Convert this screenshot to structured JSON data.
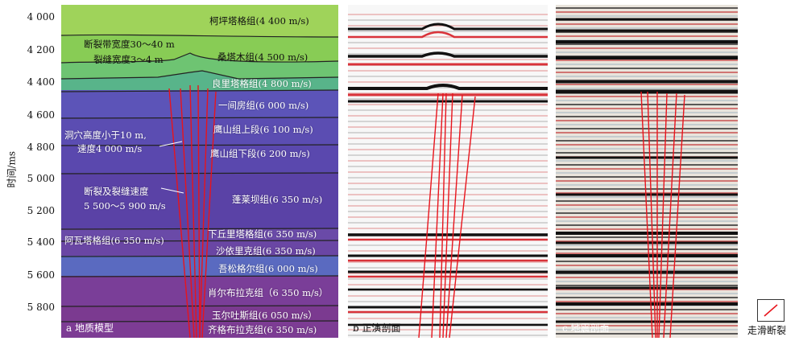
{
  "y_axis": {
    "label": "时间/ms",
    "ticks": [
      "4 000",
      "4 200",
      "4 400",
      "4 600",
      "4 800",
      "5 000",
      "5 200",
      "5 400",
      "5 600",
      "5 800"
    ]
  },
  "panel_a": {
    "label": "a 地质模型",
    "layers": [
      "柯坪塔格组(4 400 m/s)",
      "桑塔木组(4 500 m/s)",
      "良里塔格组(4 800 m/s)",
      "一间房组(6 000 m/s)",
      "鹰山组上段(6 100 m/s)",
      "鹰山组下段(6 200 m/s)",
      "蓬莱坝组(6 350 m/s)",
      "阿瓦塔格组(6 350 m/s)",
      "下丘里塔格组(6 350 m/s)",
      "沙依里克组(6 350 m/s)",
      "吾松格尔组(6 000 m/s)",
      "肖尔布拉克组（6 350 m/s）",
      "玉尔吐斯组(6 050 m/s）",
      "齐格布拉克组(6 350 m/s)"
    ],
    "annotations": {
      "fault_zone": [
        "断裂带宽度30～40 m",
        "裂缝宽度3～4 m"
      ],
      "cave": [
        "洞穴高度小于10 m,",
        "速度4 000 m/s"
      ],
      "fault_velocity": [
        "断裂及裂缝速度",
        "5 500～5 900 m/s"
      ]
    }
  },
  "panel_b": {
    "label": "b 正演剖面"
  },
  "panel_c": {
    "label": "c 地震剖面"
  },
  "legend": {
    "label": "走滑断裂",
    "color": "#e8141c"
  },
  "colors": {
    "fault": "#e8141c",
    "green_top": "#8fcf4a",
    "purple": "#5a3ca6"
  }
}
